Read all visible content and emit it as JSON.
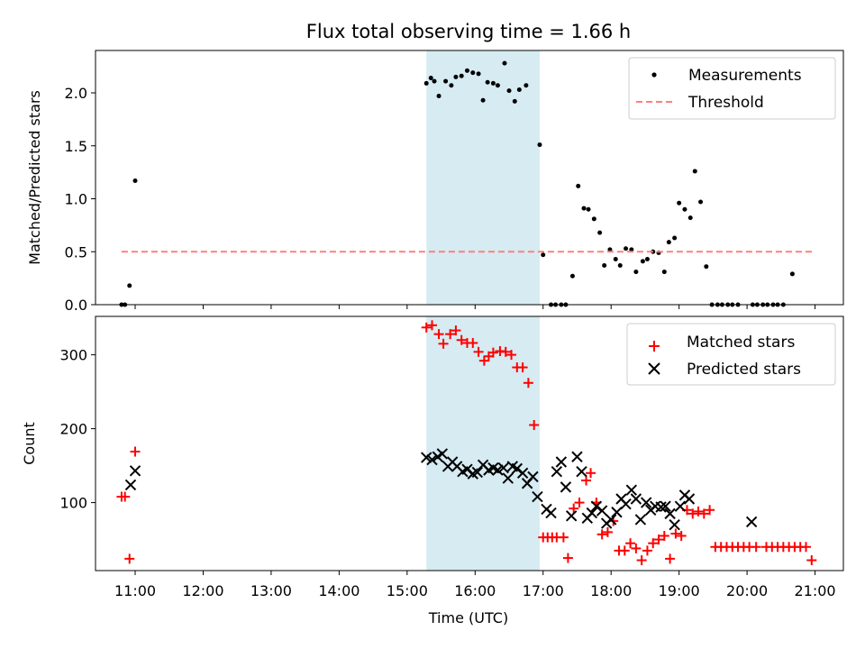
{
  "chart_data": [
    {
      "type": "scatter",
      "title": "Flux total observing time = 1.66 h",
      "xlabel": "",
      "ylabel": "Matched/Predicted stars",
      "ylim": [
        0,
        2.4
      ],
      "yticks": [
        0.0,
        0.5,
        1.0,
        1.5,
        2.0
      ],
      "ytick_labels": [
        "0.0",
        "0.5",
        "1.0",
        "1.5",
        "2.0"
      ],
      "xlim": [
        "10:25",
        "21:25"
      ],
      "grid": false,
      "legend": "top-right",
      "shaded_interval": {
        "start": "15:17",
        "end": "16:57",
        "color": "#add8e6"
      },
      "series": [
        {
          "name": "Measurements",
          "marker": "dot",
          "color": "#000000",
          "points": [
            [
              "10:48",
              0.0
            ],
            [
              "10:51",
              0.0
            ],
            [
              "10:55",
              0.18
            ],
            [
              "11:00",
              1.17
            ],
            [
              "15:17",
              2.09
            ],
            [
              "15:21",
              2.14
            ],
            [
              "15:24",
              2.11
            ],
            [
              "15:28",
              1.97
            ],
            [
              "15:34",
              2.11
            ],
            [
              "15:39",
              2.07
            ],
            [
              "15:43",
              2.15
            ],
            [
              "15:48",
              2.16
            ],
            [
              "15:53",
              2.21
            ],
            [
              "15:58",
              2.19
            ],
            [
              "16:03",
              2.18
            ],
            [
              "16:07",
              1.93
            ],
            [
              "16:11",
              2.1
            ],
            [
              "16:16",
              2.09
            ],
            [
              "16:20",
              2.07
            ],
            [
              "16:26",
              2.28
            ],
            [
              "16:30",
              2.02
            ],
            [
              "16:35",
              1.92
            ],
            [
              "16:39",
              2.03
            ],
            [
              "16:45",
              2.07
            ],
            [
              "16:57",
              1.51
            ],
            [
              "17:00",
              0.47
            ],
            [
              "17:07",
              0.0
            ],
            [
              "17:11",
              0.0
            ],
            [
              "17:16",
              0.0
            ],
            [
              "17:20",
              0.0
            ],
            [
              "17:26",
              0.27
            ],
            [
              "17:31",
              1.12
            ],
            [
              "17:36",
              0.91
            ],
            [
              "17:40",
              0.9
            ],
            [
              "17:45",
              0.81
            ],
            [
              "17:50",
              0.68
            ],
            [
              "17:54",
              0.37
            ],
            [
              "17:59",
              0.52
            ],
            [
              "18:04",
              0.43
            ],
            [
              "18:08",
              0.37
            ],
            [
              "18:13",
              0.53
            ],
            [
              "18:18",
              0.52
            ],
            [
              "18:22",
              0.31
            ],
            [
              "18:28",
              0.41
            ],
            [
              "18:32",
              0.43
            ],
            [
              "18:37",
              0.5
            ],
            [
              "18:42",
              0.49
            ],
            [
              "18:47",
              0.31
            ],
            [
              "18:51",
              0.59
            ],
            [
              "18:56",
              0.63
            ],
            [
              "19:00",
              0.96
            ],
            [
              "19:05",
              0.9
            ],
            [
              "19:10",
              0.82
            ],
            [
              "19:14",
              1.26
            ],
            [
              "19:19",
              0.97
            ],
            [
              "19:24",
              0.36
            ],
            [
              "19:29",
              0.0
            ],
            [
              "19:34",
              0.0
            ],
            [
              "19:38",
              0.0
            ],
            [
              "19:43",
              0.0
            ],
            [
              "19:47",
              0.0
            ],
            [
              "19:52",
              0.0
            ],
            [
              "20:05",
              0.0
            ],
            [
              "20:09",
              0.0
            ],
            [
              "20:14",
              0.0
            ],
            [
              "20:18",
              0.0
            ],
            [
              "20:23",
              0.0
            ],
            [
              "20:27",
              0.0
            ],
            [
              "20:32",
              0.0
            ],
            [
              "20:40",
              0.29
            ]
          ]
        },
        {
          "name": "Threshold",
          "marker": "dashed-line",
          "color": "#ff7f7f",
          "points": [
            [
              "10:48",
              0.5
            ],
            [
              "21:00",
              0.5
            ]
          ]
        }
      ]
    },
    {
      "type": "scatter",
      "title": "",
      "xlabel": "Time (UTC)",
      "ylabel": "Count",
      "ylim": [
        8,
        352
      ],
      "yticks": [
        100,
        200,
        300
      ],
      "ytick_labels": [
        "100",
        "200",
        "300"
      ],
      "xlim": [
        "10:25",
        "21:25"
      ],
      "xticks": [
        "11:00",
        "12:00",
        "13:00",
        "14:00",
        "15:00",
        "16:00",
        "17:00",
        "18:00",
        "19:00",
        "20:00",
        "21:00"
      ],
      "grid": false,
      "legend": "top-right",
      "shaded_interval": {
        "start": "15:17",
        "end": "16:57",
        "color": "#add8e6"
      },
      "series": [
        {
          "name": "Matched stars",
          "marker": "plus",
          "color": "#ff0000",
          "points": [
            [
              "10:48",
              108
            ],
            [
              "10:51",
              108
            ],
            [
              "10:55",
              24
            ],
            [
              "11:00",
              169
            ],
            [
              "15:17",
              337
            ],
            [
              "15:22",
              340
            ],
            [
              "15:28",
              328
            ],
            [
              "15:32",
              315
            ],
            [
              "15:38",
              328
            ],
            [
              "15:43",
              333
            ],
            [
              "15:48",
              320
            ],
            [
              "15:53",
              316
            ],
            [
              "15:58",
              316
            ],
            [
              "16:03",
              304
            ],
            [
              "16:08",
              292
            ],
            [
              "16:12",
              298
            ],
            [
              "16:16",
              303
            ],
            [
              "16:22",
              305
            ],
            [
              "16:27",
              304
            ],
            [
              "16:32",
              300
            ],
            [
              "16:37",
              283
            ],
            [
              "16:42",
              283
            ],
            [
              "16:47",
              262
            ],
            [
              "16:52",
              205
            ],
            [
              "17:00",
              53
            ],
            [
              "17:04",
              53
            ],
            [
              "17:08",
              53
            ],
            [
              "17:12",
              53
            ],
            [
              "17:18",
              53
            ],
            [
              "17:22",
              25
            ],
            [
              "17:27",
              92
            ],
            [
              "17:32",
              100
            ],
            [
              "17:38",
              130
            ],
            [
              "17:42",
              140
            ],
            [
              "17:47",
              100
            ],
            [
              "17:52",
              57
            ],
            [
              "17:57",
              60
            ],
            [
              "18:02",
              75
            ],
            [
              "18:07",
              35
            ],
            [
              "18:12",
              35
            ],
            [
              "18:17",
              45
            ],
            [
              "18:22",
              38
            ],
            [
              "18:27",
              22
            ],
            [
              "18:32",
              35
            ],
            [
              "18:37",
              45
            ],
            [
              "18:42",
              50
            ],
            [
              "18:47",
              55
            ],
            [
              "18:52",
              24
            ],
            [
              "18:57",
              58
            ],
            [
              "19:02",
              55
            ],
            [
              "19:07",
              90
            ],
            [
              "19:12",
              85
            ],
            [
              "19:17",
              88
            ],
            [
              "19:22",
              85
            ],
            [
              "19:27",
              90
            ],
            [
              "19:32",
              40
            ],
            [
              "19:37",
              40
            ],
            [
              "19:42",
              40
            ],
            [
              "19:47",
              40
            ],
            [
              "19:52",
              40
            ],
            [
              "19:57",
              40
            ],
            [
              "20:02",
              40
            ],
            [
              "20:08",
              40
            ],
            [
              "20:17",
              40
            ],
            [
              "20:22",
              40
            ],
            [
              "20:27",
              40
            ],
            [
              "20:32",
              40
            ],
            [
              "20:37",
              40
            ],
            [
              "20:42",
              40
            ],
            [
              "20:47",
              40
            ],
            [
              "20:52",
              40
            ],
            [
              "20:57",
              22
            ]
          ]
        },
        {
          "name": "Predicted stars",
          "marker": "x",
          "color": "#000000",
          "points": [
            [
              "10:56",
              124
            ],
            [
              "11:00",
              143
            ],
            [
              "15:17",
              161
            ],
            [
              "15:22",
              158
            ],
            [
              "15:27",
              162
            ],
            [
              "15:31",
              166
            ],
            [
              "15:36",
              149
            ],
            [
              "15:40",
              155
            ],
            [
              "15:44",
              149
            ],
            [
              "15:49",
              142
            ],
            [
              "15:53",
              145
            ],
            [
              "15:58",
              139
            ],
            [
              "16:02",
              141
            ],
            [
              "16:07",
              151
            ],
            [
              "16:12",
              144
            ],
            [
              "16:16",
              147
            ],
            [
              "16:20",
              144
            ],
            [
              "16:25",
              147
            ],
            [
              "16:29",
              133
            ],
            [
              "16:33",
              149
            ],
            [
              "16:37",
              146
            ],
            [
              "16:42",
              140
            ],
            [
              "16:46",
              126
            ],
            [
              "16:51",
              135
            ],
            [
              "16:55",
              108
            ],
            [
              "17:03",
              91
            ],
            [
              "17:07",
              86
            ],
            [
              "17:12",
              142
            ],
            [
              "17:16",
              155
            ],
            [
              "17:20",
              121
            ],
            [
              "17:25",
              82
            ],
            [
              "17:30",
              162
            ],
            [
              "17:34",
              142
            ],
            [
              "17:39",
              79
            ],
            [
              "17:43",
              86
            ],
            [
              "17:47",
              95
            ],
            [
              "17:52",
              89
            ],
            [
              "17:56",
              72
            ],
            [
              "18:00",
              77
            ],
            [
              "18:05",
              87
            ],
            [
              "18:09",
              105
            ],
            [
              "18:13",
              98
            ],
            [
              "18:18",
              117
            ],
            [
              "18:22",
              105
            ],
            [
              "18:26",
              77
            ],
            [
              "18:31",
              100
            ],
            [
              "18:35",
              90
            ],
            [
              "18:39",
              95
            ],
            [
              "18:44",
              94
            ],
            [
              "18:48",
              95
            ],
            [
              "18:52",
              85
            ],
            [
              "18:56",
              70
            ],
            [
              "19:01",
              95
            ],
            [
              "19:05",
              110
            ],
            [
              "19:09",
              105
            ],
            [
              "20:04",
              74
            ]
          ]
        }
      ]
    }
  ]
}
